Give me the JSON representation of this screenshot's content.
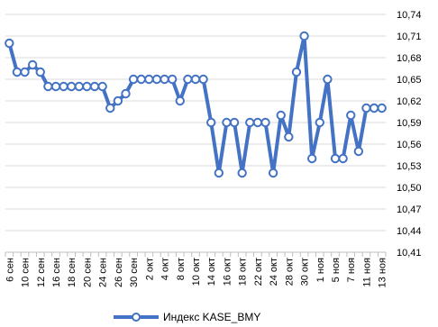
{
  "chart_data": {
    "type": "line",
    "title": "",
    "xlabel": "",
    "ylabel": "",
    "ylim": [
      10.41,
      10.74
    ],
    "y_ticks": [
      "10,74",
      "10,71",
      "10,68",
      "10,65",
      "10,62",
      "10,59",
      "10,56",
      "10,53",
      "10,50",
      "10,47",
      "10,44",
      "10,41"
    ],
    "y_tick_values": [
      10.74,
      10.71,
      10.68,
      10.65,
      10.62,
      10.59,
      10.56,
      10.53,
      10.5,
      10.47,
      10.44,
      10.41
    ],
    "x_tick_labels": [
      "6 сен",
      "10 сен",
      "12 сен",
      "16 сен",
      "18 сен",
      "20 сен",
      "24 сен",
      "26 сен",
      "30 сен",
      "2 окт",
      "4 окт",
      "8 окт",
      "10 окт",
      "14 окт",
      "16 окт",
      "18 окт",
      "22 окт",
      "24 окт",
      "28 окт",
      "30 окт",
      "1 ноя",
      "5 ноя",
      "7 ноя",
      "11 ноя",
      "13 ноя"
    ],
    "grid": "horizontal",
    "legend_position": "bottom",
    "series_color": "#4472C4",
    "series": [
      {
        "name": "Индекс KASE_BMY",
        "values": [
          10.7,
          10.66,
          10.66,
          10.67,
          10.66,
          10.64,
          10.64,
          10.64,
          10.64,
          10.64,
          10.64,
          10.64,
          10.64,
          10.61,
          10.62,
          10.63,
          10.65,
          10.65,
          10.65,
          10.65,
          10.65,
          10.65,
          10.62,
          10.65,
          10.65,
          10.65,
          10.59,
          10.52,
          10.59,
          10.59,
          10.52,
          10.59,
          10.59,
          10.59,
          10.52,
          10.6,
          10.57,
          10.66,
          10.71,
          10.54,
          10.59,
          10.65,
          10.54,
          10.54,
          10.6,
          10.55,
          10.61,
          10.61,
          10.61
        ]
      }
    ]
  },
  "legend": {
    "label": "Индекс KASE_BMY"
  }
}
